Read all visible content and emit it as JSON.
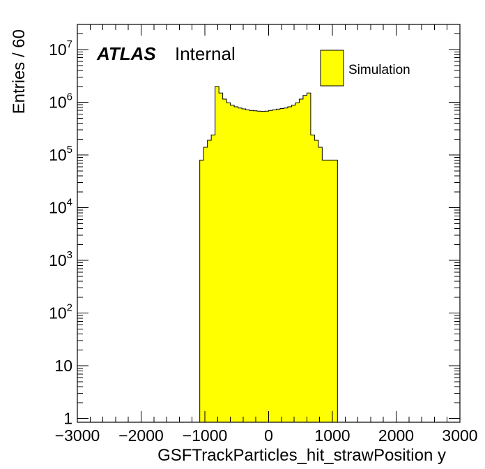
{
  "chart_data": {
    "type": "bar",
    "title": "",
    "xlabel": "GSFTrackParticles_hit_strawPosition y",
    "ylabel": "Entries / 60",
    "xlim": [
      -3000,
      3000
    ],
    "ylim": [
      0.85,
      30000000
    ],
    "yscale": "log",
    "grid": false,
    "legend_position": "top-right",
    "colors": {
      "fill": "#ffff00",
      "edge": "#000000"
    },
    "branding": {
      "experiment": "ATLAS",
      "status": "Internal"
    },
    "legend": [
      {
        "label": "Simulation",
        "color": "#ffff00"
      }
    ],
    "x_ticks": [
      {
        "value": -3000,
        "label": "−3000"
      },
      {
        "value": -2000,
        "label": "−2000"
      },
      {
        "value": -1000,
        "label": "−1000"
      },
      {
        "value": 0,
        "label": "0"
      },
      {
        "value": 1000,
        "label": "1000"
      },
      {
        "value": 2000,
        "label": "2000"
      },
      {
        "value": 3000,
        "label": "3000"
      }
    ],
    "y_ticks": [
      {
        "value": 1,
        "base": "1",
        "exp": ""
      },
      {
        "value": 10,
        "base": "10",
        "exp": ""
      },
      {
        "value": 100,
        "base": "10",
        "exp": "2"
      },
      {
        "value": 1000,
        "base": "10",
        "exp": "3"
      },
      {
        "value": 10000,
        "base": "10",
        "exp": "4"
      },
      {
        "value": 100000,
        "base": "10",
        "exp": "5"
      },
      {
        "value": 1000000,
        "base": "10",
        "exp": "6"
      },
      {
        "value": 10000000,
        "base": "10",
        "exp": "7"
      }
    ],
    "bin_edges": [
      -1080,
      -1020,
      -960,
      -900,
      -840,
      -780,
      -720,
      -660,
      -600,
      -540,
      -480,
      -420,
      -360,
      -300,
      -240,
      -180,
      -120,
      -60,
      0,
      60,
      120,
      180,
      240,
      300,
      360,
      420,
      480,
      540,
      600,
      660,
      720,
      780,
      840,
      900,
      960,
      1020,
      1080
    ],
    "values": [
      80000,
      140000,
      190000,
      240000,
      2000000,
      1500000,
      1150000,
      980000,
      880000,
      820000,
      780000,
      750000,
      720000,
      700000,
      690000,
      680000,
      670000,
      680000,
      700000,
      720000,
      740000,
      760000,
      780000,
      820000,
      880000,
      980000,
      1150000,
      1350000,
      1500000,
      240000,
      190000,
      140000,
      80000,
      80000,
      80000,
      80000
    ]
  }
}
